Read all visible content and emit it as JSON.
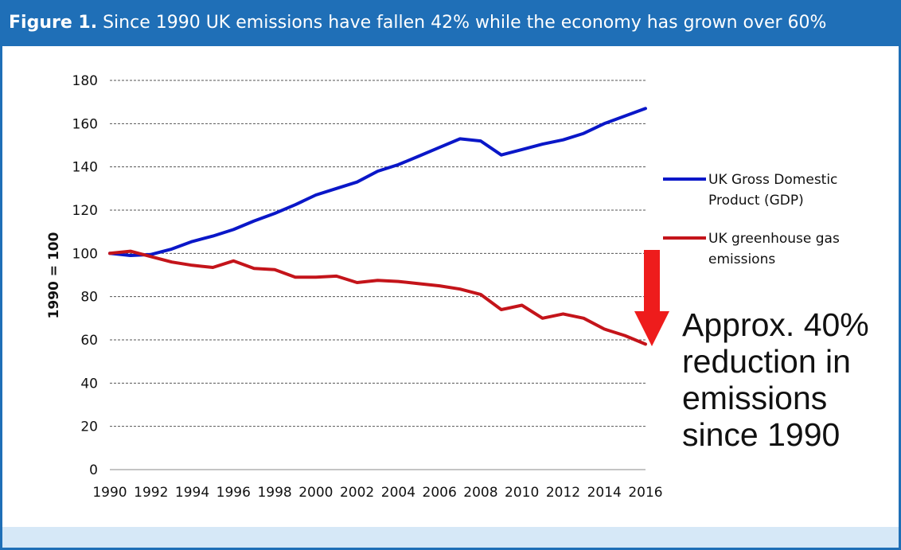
{
  "figure": {
    "label": "Figure 1.",
    "caption": "Since 1990 UK emissions have fallen 42% while the economy has grown over 60%"
  },
  "colors": {
    "header": "#1f6fb7",
    "footer": "#d6e8f7",
    "gdp": "#0a17c8",
    "emissions": "#c4141a",
    "arrow": "#ee1c1c",
    "grid": "#555555"
  },
  "annotation": {
    "lines": [
      "Approx. 40%",
      "reduction in",
      "emissions",
      "since 1990"
    ],
    "icon": "down-arrow-icon"
  },
  "chart_data": {
    "type": "line",
    "title": "",
    "xlabel": "",
    "ylabel": "1990 = 100",
    "ylim": [
      0,
      180
    ],
    "yticks": [
      0,
      20,
      40,
      60,
      80,
      100,
      120,
      140,
      160,
      180
    ],
    "xticks": [
      1990,
      1992,
      1994,
      1996,
      1998,
      2000,
      2002,
      2004,
      2006,
      2008,
      2010,
      2012,
      2014,
      2016
    ],
    "grid": true,
    "legend_position": "right",
    "x": [
      1990,
      1991,
      1992,
      1993,
      1994,
      1995,
      1996,
      1997,
      1998,
      1999,
      2000,
      2001,
      2002,
      2003,
      2004,
      2005,
      2006,
      2007,
      2008,
      2009,
      2010,
      2011,
      2012,
      2013,
      2014,
      2015,
      2016
    ],
    "series": [
      {
        "name": "UK Gross Domestic Product (GDP)",
        "legend_lines": [
          "UK Gross Domestic",
          "Product (GDP)"
        ],
        "color": "#0a17c8",
        "values": [
          100,
          99,
          99.5,
          102,
          105.5,
          108,
          111,
          115,
          118.5,
          122.5,
          127,
          130,
          133,
          138,
          141,
          145,
          149,
          153,
          152,
          145.5,
          148,
          150.5,
          152.5,
          155.5,
          160,
          163.5,
          167
        ]
      },
      {
        "name": "UK greenhouse gas emissions",
        "legend_lines": [
          "UK greenhouse gas",
          "emissions"
        ],
        "color": "#c4141a",
        "values": [
          100,
          101,
          98.5,
          96,
          94.5,
          93.5,
          96.5,
          93,
          92.5,
          89,
          89,
          89.5,
          86.5,
          87.5,
          87,
          86,
          85,
          83.5,
          81,
          74,
          76,
          70,
          72,
          70,
          65,
          62,
          58
        ]
      }
    ]
  }
}
